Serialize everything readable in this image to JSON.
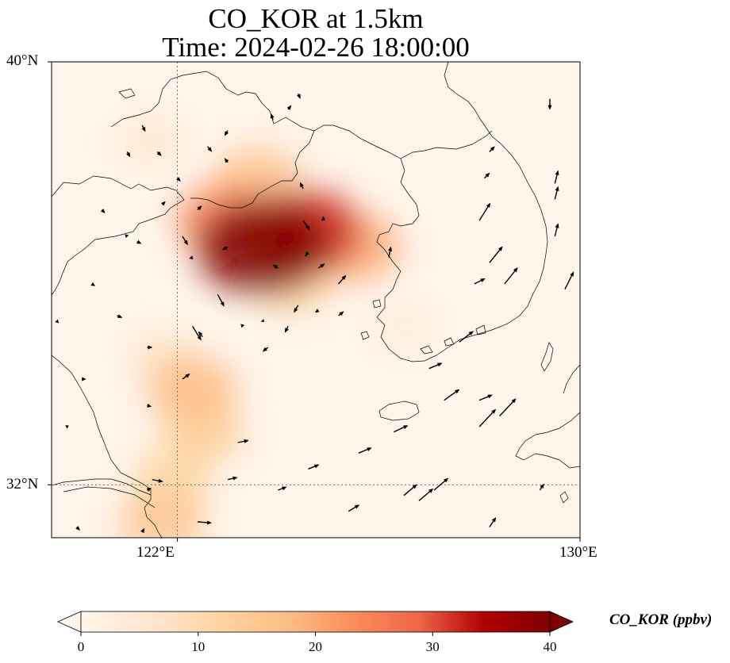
{
  "title": {
    "line1": "CO_KOR at 1.5km",
    "line2": "Time: 2024-02-26 18:00:00"
  },
  "map": {
    "extent": {
      "lon_min": 119.5,
      "lon_max": 130.0,
      "lat_min": 31.0,
      "lat_max": 40.0
    },
    "gridlines": {
      "lons": [
        122,
        130
      ],
      "lats": [
        32,
        40
      ],
      "style": "dotted"
    },
    "lon_ticks": [
      "122°E",
      "130°E"
    ],
    "lat_ticks": [
      "40°N",
      "32°N"
    ],
    "background_color": "#fff5eb",
    "coastline_color": "#000000"
  },
  "colorbar": {
    "label": "CO_KOR (ppbv)",
    "min": 0,
    "max": 40,
    "ticks": [
      0,
      10,
      20,
      30,
      40
    ],
    "colormap": "OrRd",
    "extend": "both"
  },
  "chart_data": {
    "type": "heatmap",
    "variable": "CO_KOR",
    "units": "ppbv",
    "level": "1.5km",
    "time": "2024-02-26 18:00:00",
    "plumes": [
      {
        "lon": 123.7,
        "lat": 36.5,
        "value": 40
      },
      {
        "lon": 124.5,
        "lat": 36.8,
        "value": 32
      },
      {
        "lon": 123.0,
        "lat": 37.0,
        "value": 24
      },
      {
        "lon": 123.6,
        "lat": 37.8,
        "value": 16
      },
      {
        "lon": 125.5,
        "lat": 36.5,
        "value": 20
      },
      {
        "lon": 124.3,
        "lat": 35.8,
        "value": 12
      },
      {
        "lon": 121.5,
        "lat": 38.5,
        "value": 6
      },
      {
        "lon": 121.8,
        "lat": 34.4,
        "value": 8
      },
      {
        "lon": 122.3,
        "lat": 33.8,
        "value": 18
      },
      {
        "lon": 122.5,
        "lat": 33.0,
        "value": 14
      },
      {
        "lon": 121.9,
        "lat": 32.1,
        "value": 12
      },
      {
        "lon": 121.7,
        "lat": 31.3,
        "value": 16
      },
      {
        "lon": 126.5,
        "lat": 35.0,
        "value": 4
      }
    ],
    "wind_vectors": [
      {
        "lon": 129.4,
        "lat": 39.3,
        "u": 0.0,
        "v": -1.0
      },
      {
        "lon": 126.2,
        "lat": 36.3,
        "u": 0.2,
        "v": 1.0
      },
      {
        "lon": 128.0,
        "lat": 37.0,
        "u": 1.0,
        "v": 1.6
      },
      {
        "lon": 128.2,
        "lat": 36.2,
        "u": 1.2,
        "v": 1.5
      },
      {
        "lon": 128.5,
        "lat": 35.8,
        "u": 1.2,
        "v": 1.5
      },
      {
        "lon": 129.7,
        "lat": 35.7,
        "u": 0.8,
        "v": 1.6
      },
      {
        "lon": 129.5,
        "lat": 37.7,
        "u": 0.3,
        "v": 1.2
      },
      {
        "lon": 129.5,
        "lat": 37.4,
        "u": 0.3,
        "v": 1.2
      },
      {
        "lon": 129.5,
        "lat": 36.7,
        "u": 0.3,
        "v": 1.2
      },
      {
        "lon": 128.1,
        "lat": 37.8,
        "u": 0.5,
        "v": 0.5
      },
      {
        "lon": 128.2,
        "lat": 38.3,
        "u": 0.5,
        "v": 0.5
      },
      {
        "lon": 127.9,
        "lat": 35.8,
        "u": 1.0,
        "v": 0.5
      },
      {
        "lon": 127.6,
        "lat": 34.7,
        "u": 1.3,
        "v": 1.0
      },
      {
        "lon": 127.0,
        "lat": 34.2,
        "u": 1.2,
        "v": 0.5
      },
      {
        "lon": 128.0,
        "lat": 33.6,
        "u": 1.2,
        "v": 0.5
      },
      {
        "lon": 127.3,
        "lat": 33.6,
        "u": 1.4,
        "v": 1.0
      },
      {
        "lon": 128.4,
        "lat": 33.3,
        "u": 1.5,
        "v": 1.6
      },
      {
        "lon": 128.0,
        "lat": 33.1,
        "u": 1.5,
        "v": 1.6
      },
      {
        "lon": 126.3,
        "lat": 33.0,
        "u": 1.3,
        "v": 0.6
      },
      {
        "lon": 125.6,
        "lat": 32.6,
        "u": 1.2,
        "v": 0.5
      },
      {
        "lon": 124.6,
        "lat": 32.3,
        "u": 1.0,
        "v": 0.4
      },
      {
        "lon": 123.2,
        "lat": 32.8,
        "u": 1.0,
        "v": 0.2
      },
      {
        "lon": 123.0,
        "lat": 32.1,
        "u": 0.9,
        "v": 0.2
      },
      {
        "lon": 124.0,
        "lat": 31.9,
        "u": 0.8,
        "v": 0.3
      },
      {
        "lon": 125.4,
        "lat": 31.5,
        "u": 1.0,
        "v": 0.6
      },
      {
        "lon": 126.5,
        "lat": 31.8,
        "u": 1.2,
        "v": 1.0
      },
      {
        "lon": 126.8,
        "lat": 31.7,
        "u": 1.3,
        "v": 1.1
      },
      {
        "lon": 127.1,
        "lat": 31.9,
        "u": 1.3,
        "v": 1.1
      },
      {
        "lon": 128.2,
        "lat": 31.2,
        "u": 0.6,
        "v": 0.9
      },
      {
        "lon": 129.2,
        "lat": 31.9,
        "u": 0.4,
        "v": 0.6
      },
      {
        "lon": 122.4,
        "lat": 31.3,
        "u": 1.3,
        "v": -0.1
      },
      {
        "lon": 121.5,
        "lat": 32.1,
        "u": 1.0,
        "v": -0.2
      },
      {
        "lon": 122.3,
        "lat": 35.0,
        "u": 0.8,
        "v": -1.3
      },
      {
        "lon": 122.8,
        "lat": 35.6,
        "u": 0.6,
        "v": -1.1
      },
      {
        "lon": 122.1,
        "lat": 36.7,
        "u": 0.5,
        "v": -0.8
      },
      {
        "lon": 122.4,
        "lat": 37.2,
        "u": 0.4,
        "v": 0.4
      },
      {
        "lon": 121.7,
        "lat": 37.3,
        "u": 0.3,
        "v": 0.3
      },
      {
        "lon": 121.2,
        "lat": 36.6,
        "u": 0.4,
        "v": -0.2
      },
      {
        "lon": 120.8,
        "lat": 35.2,
        "u": 0.5,
        "v": -0.2
      },
      {
        "lon": 122.6,
        "lat": 38.4,
        "u": 0.4,
        "v": -0.5
      },
      {
        "lon": 121.3,
        "lat": 38.8,
        "u": 0.3,
        "v": -0.6
      },
      {
        "lon": 121.6,
        "lat": 38.3,
        "u": 0.4,
        "v": -0.4
      },
      {
        "lon": 122.0,
        "lat": 37.8,
        "u": 0.3,
        "v": -0.3
      },
      {
        "lon": 121.0,
        "lat": 38.3,
        "u": 0.3,
        "v": -0.5
      },
      {
        "lon": 120.5,
        "lat": 37.2,
        "u": 0.3,
        "v": -0.3
      },
      {
        "lon": 120.3,
        "lat": 35.8,
        "u": 0.3,
        "v": -0.2
      },
      {
        "lon": 121.4,
        "lat": 34.6,
        "u": 0.5,
        "v": 0.0
      },
      {
        "lon": 121.4,
        "lat": 33.5,
        "u": 0.4,
        "v": -0.1
      },
      {
        "lon": 122.1,
        "lat": 34.0,
        "u": 0.7,
        "v": 0.5
      },
      {
        "lon": 121.4,
        "lat": 31.9,
        "u": 0.4,
        "v": 0.2
      },
      {
        "lon": 120.1,
        "lat": 34.0,
        "u": 0.4,
        "v": 0.0
      },
      {
        "lon": 120.0,
        "lat": 31.2,
        "u": 0.3,
        "v": -0.3
      },
      {
        "lon": 119.8,
        "lat": 33.1,
        "u": 0.2,
        "v": 0.1
      },
      {
        "lon": 119.6,
        "lat": 35.1,
        "u": 0.2,
        "v": -0.2
      },
      {
        "lon": 121.3,
        "lat": 31.1,
        "u": 0.2,
        "v": 0.4
      },
      {
        "lon": 124.2,
        "lat": 39.1,
        "u": 0.3,
        "v": 0.4
      },
      {
        "lon": 124.4,
        "lat": 39.4,
        "u": 0.2,
        "v": -0.5
      },
      {
        "lon": 124.9,
        "lat": 37.0,
        "u": 0.0,
        "v": 0.4
      },
      {
        "lon": 125.2,
        "lat": 35.8,
        "u": 0.7,
        "v": 0.8
      },
      {
        "lon": 124.5,
        "lat": 37.6,
        "u": -0.3,
        "v": 0.6
      },
      {
        "lon": 124.0,
        "lat": 36.1,
        "u": -0.5,
        "v": 0.3
      },
      {
        "lon": 123.0,
        "lat": 36.5,
        "u": -0.5,
        "v": -0.3
      },
      {
        "lon": 124.5,
        "lat": 37.0,
        "u": 0.6,
        "v": -0.9
      },
      {
        "lon": 124.2,
        "lat": 35.0,
        "u": -0.3,
        "v": -0.6
      },
      {
        "lon": 124.4,
        "lat": 35.4,
        "u": -0.4,
        "v": -0.7
      },
      {
        "lon": 123.8,
        "lat": 34.6,
        "u": -0.5,
        "v": -0.4
      },
      {
        "lon": 123.7,
        "lat": 35.1,
        "u": 0.1,
        "v": -0.1
      },
      {
        "lon": 122.5,
        "lat": 34.8,
        "u": -0.4,
        "v": 0.5
      },
      {
        "lon": 123.3,
        "lat": 35.0,
        "u": -0.2,
        "v": 0.2
      },
      {
        "lon": 124.8,
        "lat": 35.3,
        "u": -0.3,
        "v": -0.2
      },
      {
        "lon": 124.8,
        "lat": 36.1,
        "u": 0.6,
        "v": 0.4
      },
      {
        "lon": 125.2,
        "lat": 35.2,
        "u": 0.5,
        "v": 0.4
      },
      {
        "lon": 124.6,
        "lat": 36.4,
        "u": -0.3,
        "v": -0.4
      },
      {
        "lon": 123.0,
        "lat": 38.1,
        "u": -0.3,
        "v": 0.4
      },
      {
        "lon": 122.3,
        "lat": 36.3,
        "u": -0.3,
        "v": -0.1
      },
      {
        "lon": 121.0,
        "lat": 36.7,
        "u": -0.2,
        "v": 0.2
      },
      {
        "lon": 123.9,
        "lat": 38.9,
        "u": -0.2,
        "v": 0.6
      },
      {
        "lon": 123.0,
        "lat": 38.7,
        "u": -0.3,
        "v": -0.5
      }
    ]
  }
}
